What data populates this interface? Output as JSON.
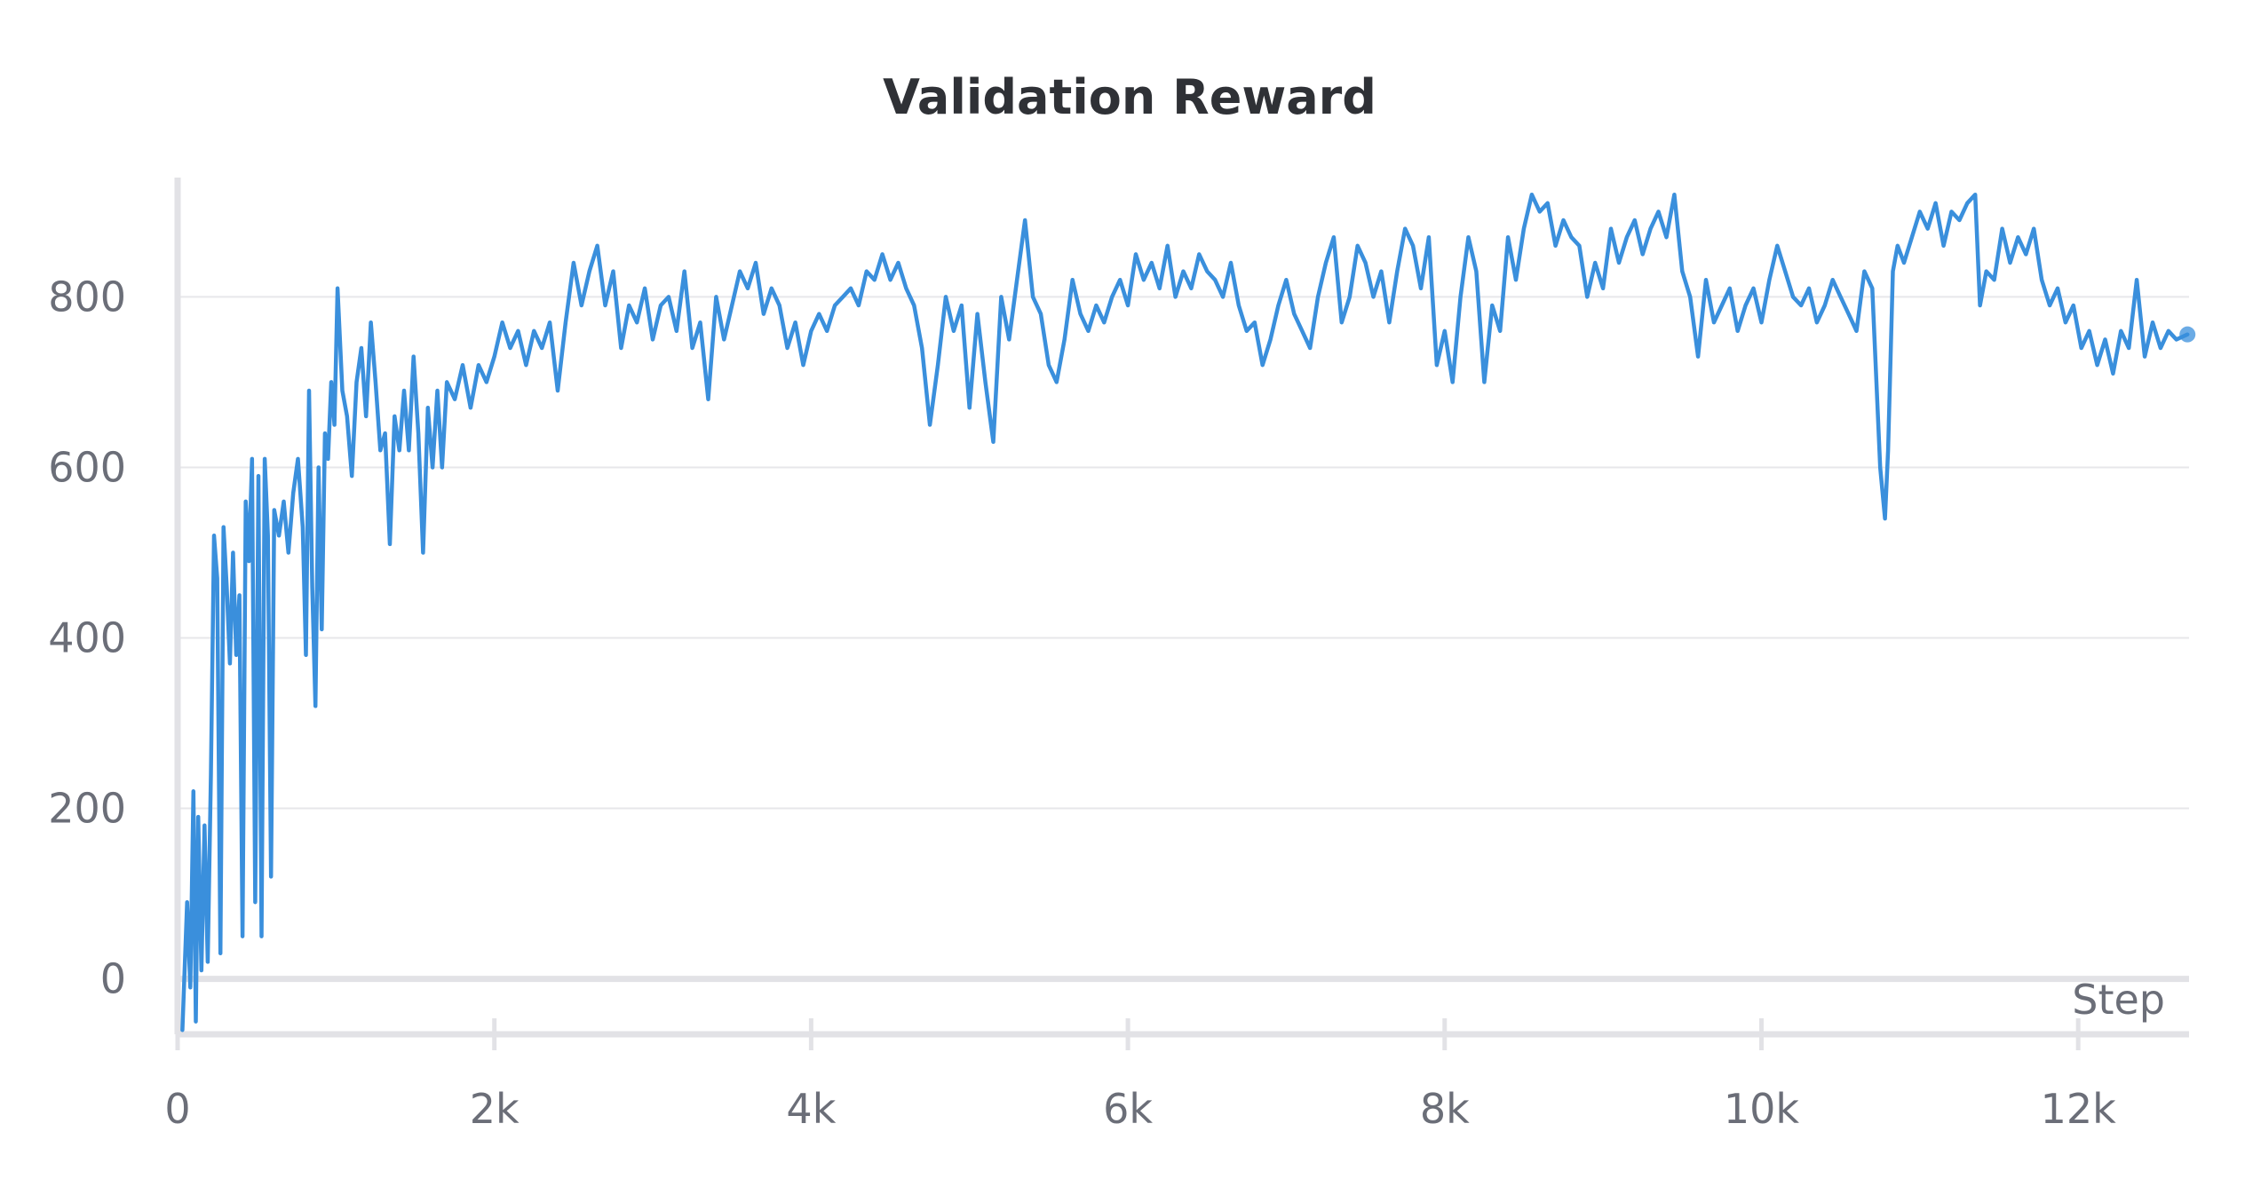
{
  "chart_data": {
    "type": "line",
    "title": "Validation Reward",
    "xlabel": "Step",
    "ylabel": "",
    "xlim": [
      0,
      12700
    ],
    "ylim": [
      -65,
      940
    ],
    "x_ticks": [
      0,
      2000,
      4000,
      6000,
      8000,
      10000,
      12000
    ],
    "x_tick_labels": [
      "0",
      "2k",
      "4k",
      "6k",
      "8k",
      "10k",
      "12k"
    ],
    "y_ticks": [
      0,
      200,
      400,
      600,
      800
    ],
    "y_tick_labels": [
      "0",
      "200",
      "400",
      "600",
      "800"
    ],
    "grid": true,
    "legend": "none",
    "series": [
      {
        "color": "#3a8fdc",
        "points": [
          [
            30,
            -60
          ],
          [
            60,
            90
          ],
          [
            80,
            -10
          ],
          [
            100,
            220
          ],
          [
            115,
            -50
          ],
          [
            130,
            190
          ],
          [
            150,
            10
          ],
          [
            170,
            180
          ],
          [
            190,
            20
          ],
          [
            210,
            240
          ],
          [
            230,
            520
          ],
          [
            250,
            470
          ],
          [
            270,
            30
          ],
          [
            290,
            530
          ],
          [
            310,
            460
          ],
          [
            330,
            370
          ],
          [
            350,
            500
          ],
          [
            370,
            380
          ],
          [
            390,
            450
          ],
          [
            410,
            50
          ],
          [
            430,
            560
          ],
          [
            450,
            490
          ],
          [
            470,
            610
          ],
          [
            490,
            90
          ],
          [
            510,
            590
          ],
          [
            530,
            50
          ],
          [
            550,
            610
          ],
          [
            570,
            520
          ],
          [
            590,
            120
          ],
          [
            610,
            550
          ],
          [
            640,
            520
          ],
          [
            670,
            560
          ],
          [
            700,
            500
          ],
          [
            730,
            570
          ],
          [
            760,
            610
          ],
          [
            790,
            530
          ],
          [
            810,
            380
          ],
          [
            830,
            690
          ],
          [
            850,
            460
          ],
          [
            870,
            320
          ],
          [
            890,
            600
          ],
          [
            910,
            410
          ],
          [
            930,
            640
          ],
          [
            950,
            610
          ],
          [
            970,
            700
          ],
          [
            990,
            650
          ],
          [
            1010,
            810
          ],
          [
            1040,
            690
          ],
          [
            1070,
            660
          ],
          [
            1100,
            590
          ],
          [
            1130,
            700
          ],
          [
            1160,
            740
          ],
          [
            1190,
            660
          ],
          [
            1220,
            770
          ],
          [
            1250,
            700
          ],
          [
            1280,
            620
          ],
          [
            1310,
            640
          ],
          [
            1340,
            510
          ],
          [
            1370,
            660
          ],
          [
            1400,
            620
          ],
          [
            1430,
            690
          ],
          [
            1460,
            620
          ],
          [
            1490,
            730
          ],
          [
            1520,
            640
          ],
          [
            1550,
            500
          ],
          [
            1580,
            670
          ],
          [
            1610,
            600
          ],
          [
            1640,
            690
          ],
          [
            1670,
            600
          ],
          [
            1700,
            700
          ],
          [
            1750,
            680
          ],
          [
            1800,
            720
          ],
          [
            1850,
            670
          ],
          [
            1900,
            720
          ],
          [
            1950,
            700
          ],
          [
            2000,
            730
          ],
          [
            2050,
            770
          ],
          [
            2100,
            740
          ],
          [
            2150,
            760
          ],
          [
            2200,
            720
          ],
          [
            2250,
            760
          ],
          [
            2300,
            740
          ],
          [
            2350,
            770
          ],
          [
            2400,
            690
          ],
          [
            2450,
            770
          ],
          [
            2500,
            840
          ],
          [
            2550,
            790
          ],
          [
            2600,
            830
          ],
          [
            2650,
            860
          ],
          [
            2700,
            790
          ],
          [
            2750,
            830
          ],
          [
            2800,
            740
          ],
          [
            2850,
            790
          ],
          [
            2900,
            770
          ],
          [
            2950,
            810
          ],
          [
            3000,
            750
          ],
          [
            3050,
            790
          ],
          [
            3100,
            800
          ],
          [
            3150,
            760
          ],
          [
            3200,
            830
          ],
          [
            3250,
            740
          ],
          [
            3300,
            770
          ],
          [
            3350,
            680
          ],
          [
            3400,
            800
          ],
          [
            3450,
            750
          ],
          [
            3500,
            790
          ],
          [
            3550,
            830
          ],
          [
            3600,
            810
          ],
          [
            3650,
            840
          ],
          [
            3700,
            780
          ],
          [
            3750,
            810
          ],
          [
            3800,
            790
          ],
          [
            3850,
            740
          ],
          [
            3900,
            770
          ],
          [
            3950,
            720
          ],
          [
            4000,
            760
          ],
          [
            4050,
            780
          ],
          [
            4100,
            760
          ],
          [
            4150,
            790
          ],
          [
            4200,
            800
          ],
          [
            4250,
            810
          ],
          [
            4300,
            790
          ],
          [
            4350,
            830
          ],
          [
            4400,
            820
          ],
          [
            4450,
            850
          ],
          [
            4500,
            820
          ],
          [
            4550,
            840
          ],
          [
            4600,
            810
          ],
          [
            4650,
            790
          ],
          [
            4700,
            740
          ],
          [
            4750,
            650
          ],
          [
            4800,
            720
          ],
          [
            4850,
            800
          ],
          [
            4900,
            760
          ],
          [
            4950,
            790
          ],
          [
            5000,
            670
          ],
          [
            5050,
            780
          ],
          [
            5100,
            700
          ],
          [
            5150,
            630
          ],
          [
            5200,
            800
          ],
          [
            5250,
            750
          ],
          [
            5300,
            820
          ],
          [
            5350,
            890
          ],
          [
            5400,
            800
          ],
          [
            5450,
            780
          ],
          [
            5500,
            720
          ],
          [
            5550,
            700
          ],
          [
            5600,
            750
          ],
          [
            5650,
            820
          ],
          [
            5700,
            780
          ],
          [
            5750,
            760
          ],
          [
            5800,
            790
          ],
          [
            5850,
            770
          ],
          [
            5900,
            800
          ],
          [
            5950,
            820
          ],
          [
            6000,
            790
          ],
          [
            6050,
            850
          ],
          [
            6100,
            820
          ],
          [
            6150,
            840
          ],
          [
            6200,
            810
          ],
          [
            6250,
            860
          ],
          [
            6300,
            800
          ],
          [
            6350,
            830
          ],
          [
            6400,
            810
          ],
          [
            6450,
            850
          ],
          [
            6500,
            830
          ],
          [
            6550,
            820
          ],
          [
            6600,
            800
          ],
          [
            6650,
            840
          ],
          [
            6700,
            790
          ],
          [
            6750,
            760
          ],
          [
            6800,
            770
          ],
          [
            6850,
            720
          ],
          [
            6900,
            750
          ],
          [
            6950,
            790
          ],
          [
            7000,
            820
          ],
          [
            7050,
            780
          ],
          [
            7100,
            760
          ],
          [
            7150,
            740
          ],
          [
            7200,
            800
          ],
          [
            7250,
            840
          ],
          [
            7300,
            870
          ],
          [
            7350,
            770
          ],
          [
            7400,
            800
          ],
          [
            7450,
            860
          ],
          [
            7500,
            840
          ],
          [
            7550,
            800
          ],
          [
            7600,
            830
          ],
          [
            7650,
            770
          ],
          [
            7700,
            830
          ],
          [
            7750,
            880
          ],
          [
            7800,
            860
          ],
          [
            7850,
            810
          ],
          [
            7900,
            870
          ],
          [
            7950,
            720
          ],
          [
            8000,
            760
          ],
          [
            8050,
            700
          ],
          [
            8100,
            800
          ],
          [
            8150,
            870
          ],
          [
            8200,
            830
          ],
          [
            8250,
            700
          ],
          [
            8300,
            790
          ],
          [
            8350,
            760
          ],
          [
            8400,
            870
          ],
          [
            8450,
            820
          ],
          [
            8500,
            880
          ],
          [
            8550,
            920
          ],
          [
            8600,
            900
          ],
          [
            8650,
            910
          ],
          [
            8700,
            860
          ],
          [
            8750,
            890
          ],
          [
            8800,
            870
          ],
          [
            8850,
            860
          ],
          [
            8900,
            800
          ],
          [
            8950,
            840
          ],
          [
            9000,
            810
          ],
          [
            9050,
            880
          ],
          [
            9100,
            840
          ],
          [
            9150,
            870
          ],
          [
            9200,
            890
          ],
          [
            9250,
            850
          ],
          [
            9300,
            880
          ],
          [
            9350,
            900
          ],
          [
            9400,
            870
          ],
          [
            9450,
            920
          ],
          [
            9500,
            830
          ],
          [
            9550,
            800
          ],
          [
            9600,
            730
          ],
          [
            9650,
            820
          ],
          [
            9700,
            770
          ],
          [
            9750,
            790
          ],
          [
            9800,
            810
          ],
          [
            9850,
            760
          ],
          [
            9900,
            790
          ],
          [
            9950,
            810
          ],
          [
            10000,
            770
          ],
          [
            10050,
            820
          ],
          [
            10100,
            860
          ],
          [
            10150,
            830
          ],
          [
            10200,
            800
          ],
          [
            10250,
            790
          ],
          [
            10300,
            810
          ],
          [
            10350,
            770
          ],
          [
            10400,
            790
          ],
          [
            10450,
            820
          ],
          [
            10500,
            800
          ],
          [
            10550,
            780
          ],
          [
            10600,
            760
          ],
          [
            10650,
            830
          ],
          [
            10700,
            810
          ],
          [
            10750,
            600
          ],
          [
            10780,
            540
          ],
          [
            10800,
            620
          ],
          [
            10830,
            830
          ],
          [
            10860,
            860
          ],
          [
            10900,
            840
          ],
          [
            10950,
            870
          ],
          [
            11000,
            900
          ],
          [
            11050,
            880
          ],
          [
            11100,
            910
          ],
          [
            11150,
            860
          ],
          [
            11200,
            900
          ],
          [
            11250,
            890
          ],
          [
            11300,
            910
          ],
          [
            11350,
            920
          ],
          [
            11380,
            790
          ],
          [
            11420,
            830
          ],
          [
            11470,
            820
          ],
          [
            11520,
            880
          ],
          [
            11570,
            840
          ],
          [
            11620,
            870
          ],
          [
            11670,
            850
          ],
          [
            11720,
            880
          ],
          [
            11770,
            820
          ],
          [
            11820,
            790
          ],
          [
            11870,
            810
          ],
          [
            11920,
            770
          ],
          [
            11970,
            790
          ],
          [
            12020,
            740
          ],
          [
            12070,
            760
          ],
          [
            12120,
            720
          ],
          [
            12170,
            750
          ],
          [
            12220,
            710
          ],
          [
            12270,
            760
          ],
          [
            12320,
            740
          ],
          [
            12370,
            820
          ],
          [
            12420,
            730
          ],
          [
            12470,
            770
          ],
          [
            12520,
            740
          ],
          [
            12570,
            760
          ],
          [
            12620,
            750
          ],
          [
            12690,
            756
          ]
        ]
      }
    ]
  }
}
